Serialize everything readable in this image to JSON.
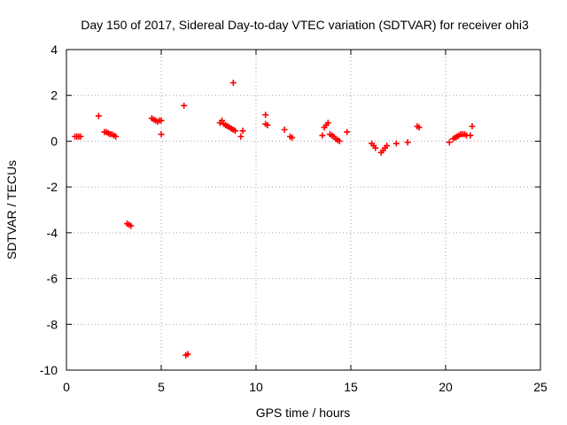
{
  "chart_data": {
    "type": "scatter",
    "title": "Day 150 of 2017, Sidereal Day-to-day VTEC variation (SDTVAR) for receiver ohi3",
    "xlabel": "GPS time / hours",
    "ylabel": "SDTVAR / TECUs",
    "xlim": [
      0,
      25
    ],
    "ylim": [
      -10,
      4
    ],
    "xticks": [
      0,
      5,
      10,
      15,
      20,
      25
    ],
    "yticks": [
      -10,
      -8,
      -6,
      -4,
      -2,
      0,
      2,
      4
    ],
    "grid": true,
    "marker": "+",
    "color": "#ff0000",
    "series": [
      {
        "name": "SDTVAR",
        "points": [
          [
            0.45,
            0.2
          ],
          [
            0.55,
            0.2
          ],
          [
            0.65,
            0.2
          ],
          [
            0.75,
            0.2
          ],
          [
            1.7,
            1.1
          ],
          [
            2.0,
            0.4
          ],
          [
            2.1,
            0.4
          ],
          [
            2.2,
            0.35
          ],
          [
            2.3,
            0.3
          ],
          [
            2.4,
            0.3
          ],
          [
            2.5,
            0.25
          ],
          [
            2.6,
            0.2
          ],
          [
            3.2,
            -3.6
          ],
          [
            3.3,
            -3.65
          ],
          [
            3.4,
            -3.7
          ],
          [
            4.5,
            1.0
          ],
          [
            4.6,
            0.95
          ],
          [
            4.7,
            0.9
          ],
          [
            4.8,
            0.85
          ],
          [
            4.9,
            0.9
          ],
          [
            5.0,
            0.9
          ],
          [
            5.0,
            0.3
          ],
          [
            6.2,
            1.55
          ],
          [
            6.3,
            -9.35
          ],
          [
            6.4,
            -9.3
          ],
          [
            8.1,
            0.8
          ],
          [
            8.2,
            0.9
          ],
          [
            8.3,
            0.75
          ],
          [
            8.4,
            0.7
          ],
          [
            8.5,
            0.65
          ],
          [
            8.6,
            0.6
          ],
          [
            8.7,
            0.55
          ],
          [
            8.8,
            0.5
          ],
          [
            8.9,
            0.45
          ],
          [
            8.8,
            2.55
          ],
          [
            9.2,
            0.2
          ],
          [
            9.3,
            0.45
          ],
          [
            10.5,
            1.15
          ],
          [
            10.5,
            0.75
          ],
          [
            10.6,
            0.7
          ],
          [
            11.5,
            0.5
          ],
          [
            11.8,
            0.2
          ],
          [
            11.9,
            0.15
          ],
          [
            13.5,
            0.25
          ],
          [
            13.6,
            0.6
          ],
          [
            13.7,
            0.7
          ],
          [
            13.8,
            0.8
          ],
          [
            13.9,
            0.3
          ],
          [
            14.0,
            0.25
          ],
          [
            14.1,
            0.2
          ],
          [
            14.2,
            0.1
          ],
          [
            14.3,
            0.05
          ],
          [
            14.4,
            0.0
          ],
          [
            14.8,
            0.4
          ],
          [
            16.1,
            -0.1
          ],
          [
            16.2,
            -0.2
          ],
          [
            16.3,
            -0.3
          ],
          [
            16.6,
            -0.5
          ],
          [
            16.7,
            -0.4
          ],
          [
            16.8,
            -0.3
          ],
          [
            16.9,
            -0.2
          ],
          [
            17.4,
            -0.1
          ],
          [
            18.0,
            -0.05
          ],
          [
            18.5,
            0.65
          ],
          [
            18.6,
            0.6
          ],
          [
            20.2,
            -0.05
          ],
          [
            20.4,
            0.1
          ],
          [
            20.5,
            0.15
          ],
          [
            20.6,
            0.2
          ],
          [
            20.7,
            0.25
          ],
          [
            20.8,
            0.3
          ],
          [
            20.9,
            0.3
          ],
          [
            21.0,
            0.3
          ],
          [
            21.1,
            0.25
          ],
          [
            21.3,
            0.25
          ],
          [
            21.4,
            0.65
          ]
        ]
      }
    ]
  }
}
